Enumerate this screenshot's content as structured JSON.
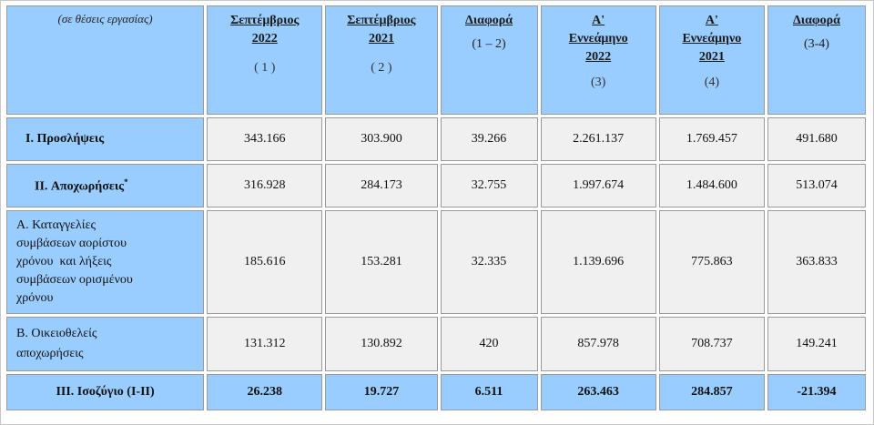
{
  "header": {
    "corner": "(σε θέσεις εργασίας)",
    "columns": [
      {
        "title_line1": "Σεπτέμβριος",
        "title_line2": "2022",
        "number": "( 1 )"
      },
      {
        "title_line1": "Σεπτέμβριος",
        "title_line2": "2021",
        "number": "( 2 )"
      },
      {
        "title_line1": "Διαφορά",
        "title_line2": "",
        "number": "(1 – 2)"
      },
      {
        "title_line1": "Α'",
        "title_line2": "Εννεάμηνο",
        "title_line3": "2022",
        "number": "(3)"
      },
      {
        "title_line1": "Α'",
        "title_line2": "Εννεάμηνο",
        "title_line3": "2021",
        "number": "(4)"
      },
      {
        "title_line1": "Διαφορά",
        "title_line2": "",
        "number": "(3-4)"
      }
    ]
  },
  "rows": [
    {
      "label": "I. Προσλήψεις",
      "values": [
        "343.166",
        "303.900",
        "39.266",
        "2.261.137",
        "1.769.457",
        "491.680"
      ]
    },
    {
      "label": "II. Αποχωρήσεις",
      "label_sup": "*",
      "values": [
        "316.928",
        "284.173",
        "32.755",
        "1.997.674",
        "1.484.600",
        "513.074"
      ]
    },
    {
      "label_lines": [
        "Α. Καταγγελίες",
        "συμβάσεων αορίστου",
        "χρόνου  και λήξεις",
        "συμβάσεων ορισμένου",
        "χρόνου"
      ],
      "values": [
        "185.616",
        "153.281",
        "32.335",
        "1.139.696",
        "775.863",
        "363.833"
      ]
    },
    {
      "label_lines": [
        "Β. Οικειοθελείς",
        "αποχωρήσεις"
      ],
      "values": [
        "131.312",
        "130.892",
        "420",
        "857.978",
        "708.737",
        "149.241"
      ]
    },
    {
      "label": "III. Ισοζύγιο (I-II)",
      "values": [
        "26.238",
        "19.727",
        "6.511",
        "263.463",
        "284.857",
        "-21.394"
      ]
    }
  ]
}
